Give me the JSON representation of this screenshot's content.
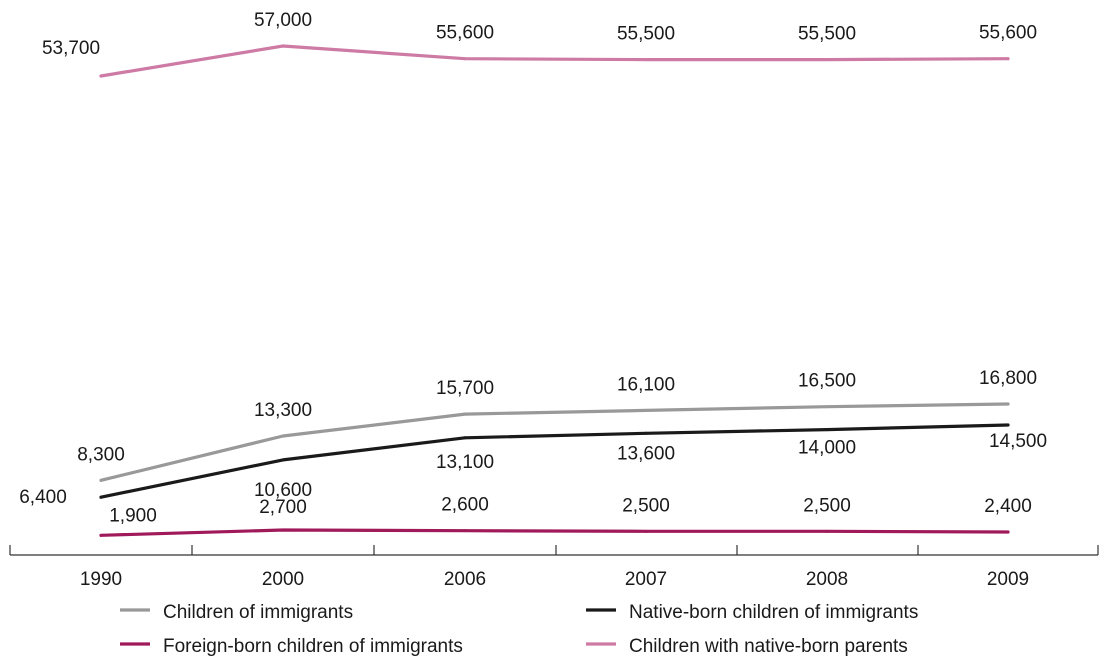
{
  "chart_data": {
    "type": "line",
    "categories": [
      "1990",
      "2000",
      "2006",
      "2007",
      "2008",
      "2009"
    ],
    "series": [
      {
        "name": "Children with native-born parents",
        "values": [
          53700,
          57000,
          55600,
          55500,
          55500,
          55600
        ],
        "labels": [
          "53,700",
          "57,000",
          "55,600",
          "55,500",
          "55,500",
          "55,600"
        ],
        "color": "#cd7aa4"
      },
      {
        "name": "Children of immigrants",
        "values": [
          8300,
          13300,
          15700,
          16100,
          16500,
          16800
        ],
        "labels": [
          "8,300",
          "13,300",
          "15,700",
          "16,100",
          "16,500",
          "16,800"
        ],
        "color": "#999999"
      },
      {
        "name": "Native-born children of immigrants",
        "values": [
          6400,
          10600,
          13100,
          13600,
          14000,
          14500
        ],
        "labels": [
          "6,400",
          "10,600",
          "13,100",
          "13,600",
          "14,000",
          "14,500"
        ],
        "color": "#1a1a1a"
      },
      {
        "name": "Foreign-born children of immigrants",
        "values": [
          1900,
          2700,
          2600,
          2500,
          2500,
          2400
        ],
        "labels": [
          "1,900",
          "2,700",
          "2,600",
          "2,500",
          "2,500",
          "2,400"
        ],
        "color": "#a0195a"
      }
    ],
    "legend_order": [
      1,
      2,
      3,
      0
    ],
    "title": "",
    "xlabel": "",
    "ylabel": "",
    "grid": false,
    "legend_position": "bottom",
    "y_axis_visible": false
  }
}
